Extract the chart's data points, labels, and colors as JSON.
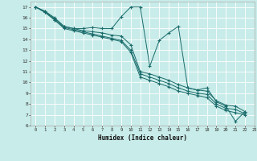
{
  "xlabel": "Humidex (Indice chaleur)",
  "xlim": [
    -0.5,
    23
  ],
  "ylim": [
    6,
    17.5
  ],
  "xticks": [
    0,
    1,
    2,
    3,
    4,
    5,
    6,
    7,
    8,
    9,
    10,
    11,
    12,
    13,
    14,
    15,
    16,
    17,
    18,
    19,
    20,
    21,
    22,
    23
  ],
  "yticks": [
    6,
    7,
    8,
    9,
    10,
    11,
    12,
    13,
    14,
    15,
    16,
    17
  ],
  "bg_color": "#c8ece9",
  "line_color": "#1a6b6b",
  "grid_color": "#ffffff",
  "lines": [
    [
      17.0,
      16.6,
      16.0,
      15.2,
      15.0,
      15.0,
      15.1,
      15.0,
      15.0,
      16.1,
      17.0,
      17.0,
      11.5,
      13.9,
      14.6,
      15.2,
      9.5,
      9.3,
      9.5,
      8.2,
      7.8,
      6.4,
      7.3
    ],
    [
      17.0,
      16.6,
      15.9,
      15.2,
      15.0,
      14.8,
      14.7,
      14.6,
      14.4,
      14.3,
      13.5,
      11.0,
      10.8,
      10.5,
      10.2,
      9.8,
      9.5,
      9.3,
      9.2,
      8.3,
      7.9,
      7.8,
      7.3
    ],
    [
      17.0,
      16.5,
      15.8,
      15.1,
      14.9,
      14.7,
      14.5,
      14.3,
      14.1,
      13.9,
      13.0,
      10.8,
      10.5,
      10.2,
      9.9,
      9.5,
      9.2,
      9.0,
      8.9,
      8.0,
      7.6,
      7.5,
      7.1
    ],
    [
      17.0,
      16.5,
      15.8,
      15.0,
      14.8,
      14.6,
      14.4,
      14.2,
      14.0,
      13.8,
      12.8,
      10.5,
      10.2,
      9.9,
      9.6,
      9.2,
      9.0,
      8.8,
      8.6,
      7.8,
      7.4,
      7.2,
      7.0
    ]
  ]
}
